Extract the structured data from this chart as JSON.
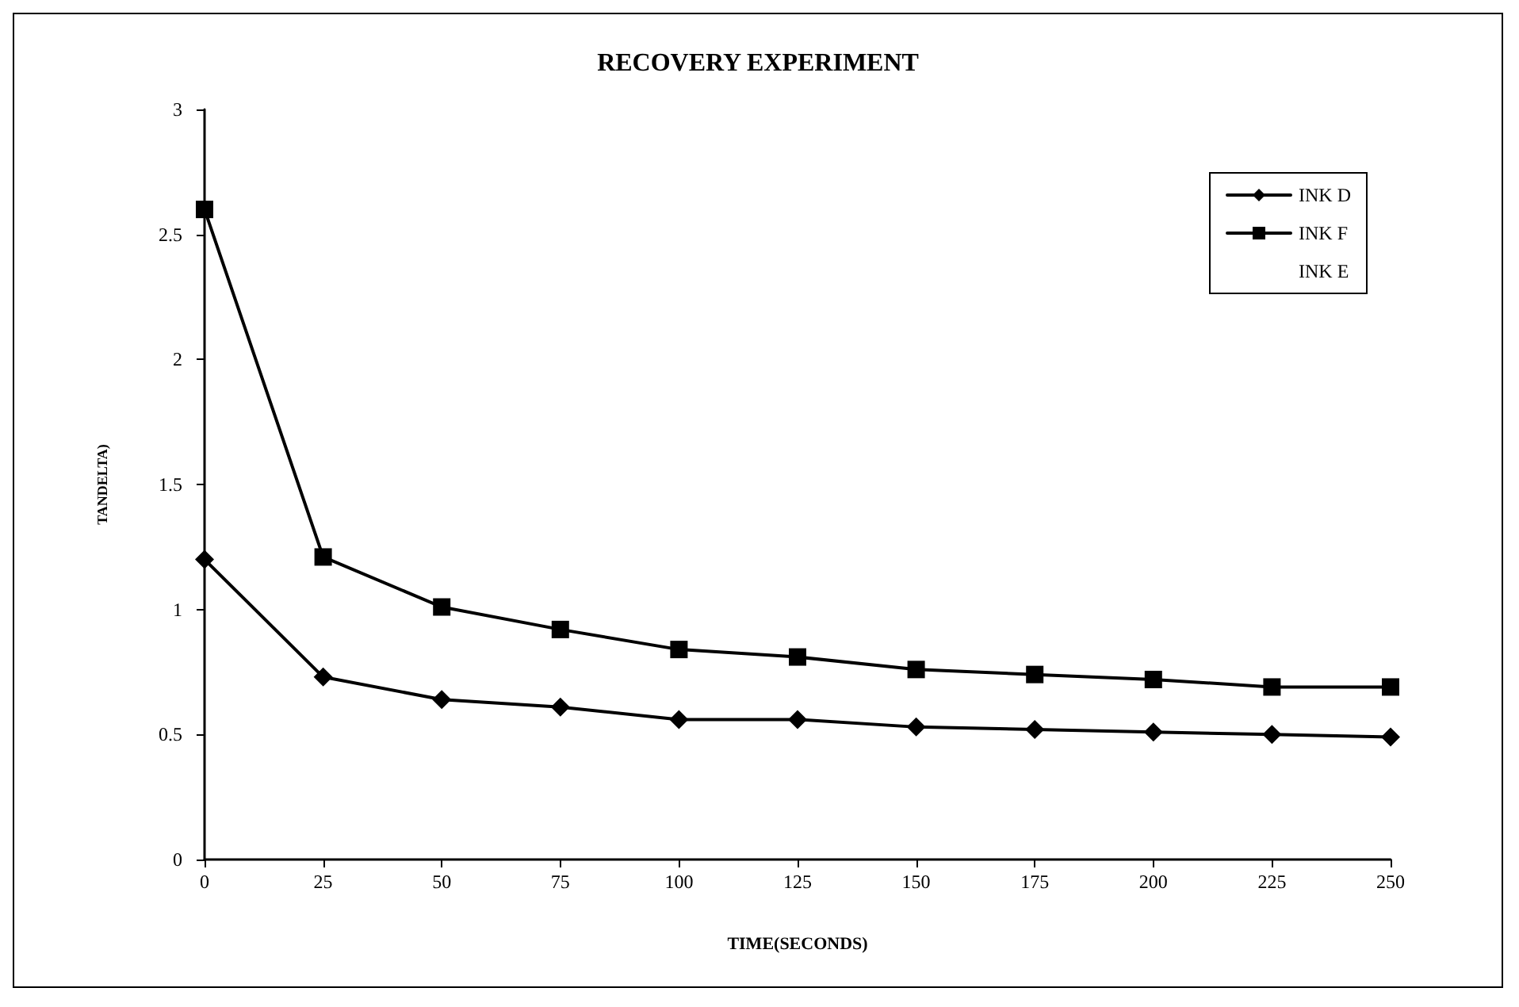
{
  "chart_data": {
    "type": "line",
    "title": "RECOVERY EXPERIMENT",
    "xlabel": "TIME(SECONDS)",
    "ylabel": "TANDELTA)",
    "x": [
      0,
      25,
      50,
      75,
      100,
      125,
      150,
      175,
      200,
      225,
      250
    ],
    "series": [
      {
        "name": "INK D",
        "color": "#000000",
        "marker": "diamond",
        "values": [
          1.2,
          0.73,
          0.64,
          0.61,
          0.56,
          0.56,
          0.53,
          0.52,
          0.51,
          0.5,
          0.49
        ]
      },
      {
        "name": "INK F",
        "color": "#000000",
        "marker": "square",
        "values": [
          2.6,
          1.21,
          1.01,
          0.92,
          0.84,
          0.81,
          0.76,
          0.74,
          0.72,
          0.69,
          0.69
        ]
      },
      {
        "name": "INK E",
        "marker": "none",
        "values": [
          null,
          null,
          null,
          null,
          null,
          null,
          null,
          null,
          null,
          null,
          null
        ]
      }
    ],
    "xlim": [
      0,
      250
    ],
    "xticks": [
      0,
      25,
      50,
      75,
      100,
      125,
      150,
      175,
      200,
      225,
      250
    ],
    "ylim": [
      0,
      3
    ],
    "yticks": [
      0,
      0.5,
      1,
      1.5,
      2,
      2.5,
      3
    ],
    "grid": false,
    "legend": "top right",
    "line_style": "solid"
  }
}
